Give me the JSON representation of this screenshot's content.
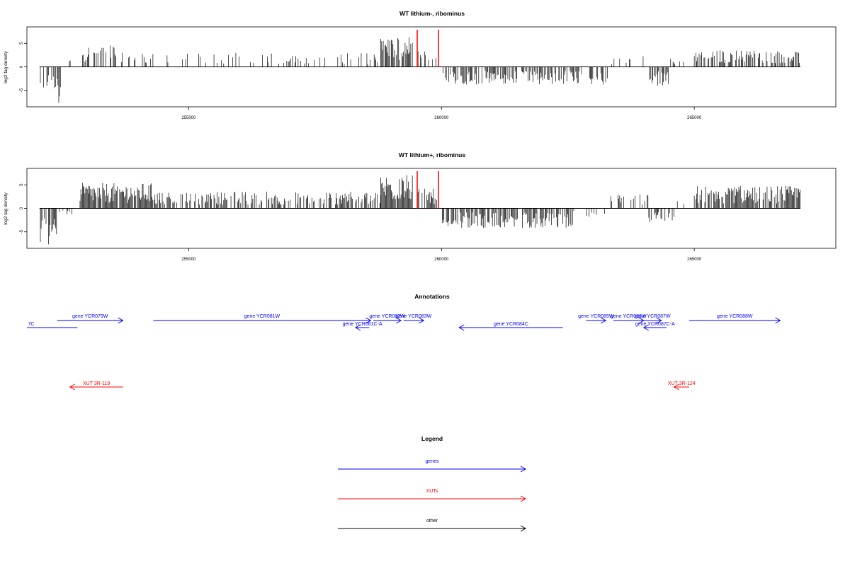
{
  "colors": {
    "gene": "#0000ff",
    "xut": "#ff0000",
    "other": "#000000",
    "marker": "#ff0000",
    "bar": "#000000"
  },
  "chart_data": [
    {
      "type": "bar",
      "title": "WT lithium-, ribominus",
      "ylabel": "log2 tag density",
      "xlim": [
        251800,
        267800
      ],
      "ylim": [
        -8.5,
        8.5
      ],
      "xticks": [
        255000,
        260000,
        265000
      ],
      "xtick_labels": [
        "255000",
        "260000",
        "265000"
      ],
      "yticks": [
        5,
        0,
        -5
      ],
      "ytick_labels": [
        "5",
        "0",
        "-5"
      ],
      "markers": [
        259520,
        259940
      ],
      "segments": [
        {
          "from": 252050,
          "to": 252350,
          "amp": -4.0,
          "density": 0.6
        },
        {
          "from": 252350,
          "to": 252480,
          "amp": -6.5,
          "density": 0.6
        },
        {
          "from": 252560,
          "to": 252700,
          "amp": 1.5,
          "density": 0.15
        },
        {
          "from": 252900,
          "to": 253700,
          "amp": 4.0,
          "density": 0.45
        },
        {
          "from": 253700,
          "to": 254300,
          "amp": 2.5,
          "density": 0.25
        },
        {
          "from": 254300,
          "to": 258300,
          "amp": 2.5,
          "density": 0.22
        },
        {
          "from": 258300,
          "to": 258800,
          "amp": 2.5,
          "density": 0.18
        },
        {
          "from": 258800,
          "to": 259430,
          "amp": 5.5,
          "density": 0.8
        },
        {
          "from": 259520,
          "to": 259920,
          "amp": 2.8,
          "density": 0.6
        },
        {
          "from": 260000,
          "to": 263300,
          "amp": -3.2,
          "density": 0.55
        },
        {
          "from": 263300,
          "to": 264100,
          "amp": 2.0,
          "density": 0.2
        },
        {
          "from": 264100,
          "to": 264500,
          "amp": -3.5,
          "density": 0.7
        },
        {
          "from": 264500,
          "to": 265000,
          "amp": 1.5,
          "density": 0.1
        },
        {
          "from": 265000,
          "to": 267100,
          "amp": 3.0,
          "density": 0.55
        }
      ]
    },
    {
      "type": "bar",
      "title": "WT lithium+, ribominus",
      "ylabel": "log2 tag density",
      "xlim": [
        251800,
        267800
      ],
      "ylim": [
        -8.5,
        8.5
      ],
      "xticks": [
        255000,
        260000,
        265000
      ],
      "xtick_labels": [
        "255000",
        "260000",
        "265000"
      ],
      "yticks": [
        5,
        0,
        -5
      ],
      "ytick_labels": [
        "5",
        "0",
        "-5"
      ],
      "markers": [
        259520,
        259940
      ],
      "segments": [
        {
          "from": 252050,
          "to": 252400,
          "amp": -6.5,
          "density": 0.85
        },
        {
          "from": 252400,
          "to": 252700,
          "amp": -1.2,
          "density": 0.2
        },
        {
          "from": 252850,
          "to": 254300,
          "amp": 4.5,
          "density": 0.9
        },
        {
          "from": 254300,
          "to": 258800,
          "amp": 3.0,
          "density": 0.55
        },
        {
          "from": 258800,
          "to": 259430,
          "amp": 6.0,
          "density": 0.9
        },
        {
          "from": 259520,
          "to": 259920,
          "amp": 3.5,
          "density": 0.6
        },
        {
          "from": 260000,
          "to": 262600,
          "amp": -3.5,
          "density": 0.75
        },
        {
          "from": 262600,
          "to": 263300,
          "amp": -1.5,
          "density": 0.2
        },
        {
          "from": 263300,
          "to": 264100,
          "amp": 2.5,
          "density": 0.35
        },
        {
          "from": 264100,
          "to": 264600,
          "amp": -2.5,
          "density": 0.45
        },
        {
          "from": 264600,
          "to": 265000,
          "amp": 1.5,
          "density": 0.1
        },
        {
          "from": 265000,
          "to": 267100,
          "amp": 4.0,
          "density": 0.85
        }
      ]
    }
  ],
  "annotations": {
    "title": "Annotations",
    "features": [
      {
        "label": "7C",
        "kind": "gene",
        "start": 251800,
        "end": 252800,
        "strand": "",
        "row": 0
      },
      {
        "label": "gene YCR079W",
        "kind": "gene",
        "start": 252400,
        "end": 253700,
        "strand": "+",
        "row": -1
      },
      {
        "label": "gene YCR081W",
        "kind": "gene",
        "start": 254300,
        "end": 258600,
        "strand": "+",
        "row": -1
      },
      {
        "label": "gene YCR081C-A",
        "kind": "gene",
        "start": 258300,
        "end": 258570,
        "strand": "-",
        "row": 1
      },
      {
        "label": "gene YCR082W",
        "kind": "gene",
        "start": 258650,
        "end": 259200,
        "strand": "+",
        "row": -1
      },
      {
        "label": "gene YCR083W",
        "kind": "gene",
        "start": 259250,
        "end": 259650,
        "strand": "+",
        "row": -1
      },
      {
        "label": "gene YCR084C",
        "kind": "gene",
        "start": 260350,
        "end": 262400,
        "strand": "-",
        "row": 0
      },
      {
        "label": "gene YCR085W",
        "kind": "gene",
        "start": 262860,
        "end": 263250,
        "strand": "+",
        "row": -1
      },
      {
        "label": "gene YCR086W",
        "kind": "gene",
        "start": 263400,
        "end": 264000,
        "strand": "+",
        "row": -1
      },
      {
        "label": "gene YCR087W",
        "kind": "gene",
        "start": 264000,
        "end": 264350,
        "strand": "+",
        "row": -1
      },
      {
        "label": "gene YCR087C-A",
        "kind": "gene",
        "start": 264000,
        "end": 264450,
        "strand": "-",
        "row": 1
      },
      {
        "label": "gene YCR088W",
        "kind": "gene",
        "start": 264900,
        "end": 266700,
        "strand": "+",
        "row": -1
      },
      {
        "label": "XUT 3R-119",
        "kind": "xut",
        "start": 252650,
        "end": 253700,
        "strand": "-",
        "row": 8
      },
      {
        "label": "XUT 3R-124",
        "kind": "xut",
        "start": 264600,
        "end": 264900,
        "strand": "-",
        "row": 8
      }
    ]
  },
  "legend": {
    "title": "Legend",
    "items": [
      {
        "label": "genes",
        "kind": "gene"
      },
      {
        "label": "XUTs",
        "kind": "xut"
      },
      {
        "label": "other",
        "kind": "other"
      }
    ]
  }
}
